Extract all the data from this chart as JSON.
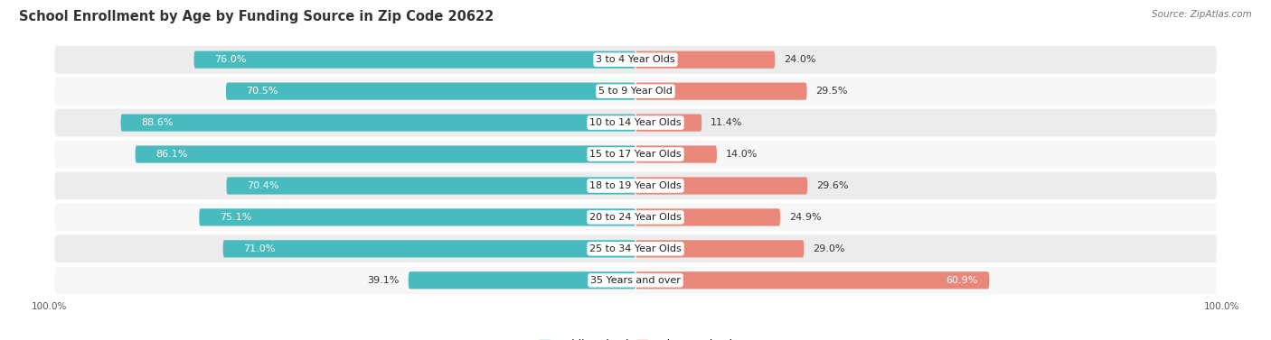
{
  "title": "School Enrollment by Age by Funding Source in Zip Code 20622",
  "source_text": "Source: ZipAtlas.com",
  "categories": [
    "3 to 4 Year Olds",
    "5 to 9 Year Old",
    "10 to 14 Year Olds",
    "15 to 17 Year Olds",
    "18 to 19 Year Olds",
    "20 to 24 Year Olds",
    "25 to 34 Year Olds",
    "35 Years and over"
  ],
  "public_values": [
    76.0,
    70.5,
    88.6,
    86.1,
    70.4,
    75.1,
    71.0,
    39.1
  ],
  "private_values": [
    24.0,
    29.5,
    11.4,
    14.0,
    29.6,
    24.9,
    29.0,
    60.9
  ],
  "public_color": "#49BBBF",
  "private_color": "#E8877A",
  "row_color_even": "#ECECEC",
  "row_color_odd": "#F7F7F7",
  "title_fontsize": 10.5,
  "label_fontsize": 8,
  "value_fontsize": 8,
  "legend_fontsize": 8.5,
  "axis_label_fontsize": 7.5,
  "x_left_label": "100.0%",
  "x_right_label": "100.0%"
}
